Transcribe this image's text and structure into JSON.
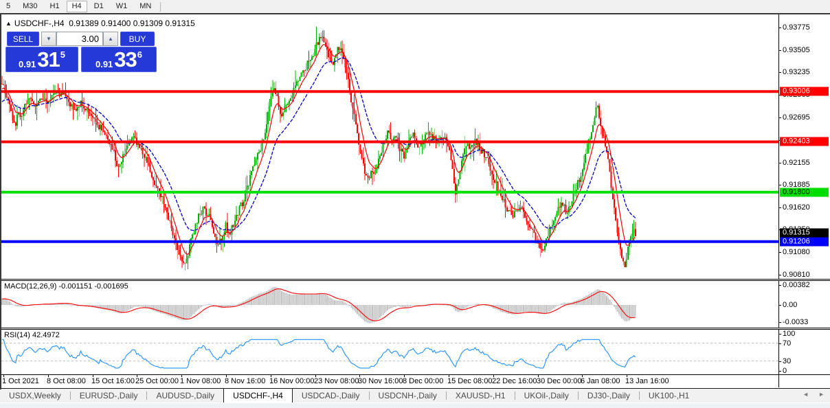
{
  "toolbar": {
    "timeframes": [
      {
        "label": "5",
        "active": false
      },
      {
        "label": "M30",
        "active": false
      },
      {
        "label": "H1",
        "active": false
      },
      {
        "label": "H4",
        "active": true
      },
      {
        "label": "D1",
        "active": false
      },
      {
        "label": "W1",
        "active": false
      },
      {
        "label": "MN",
        "active": false
      }
    ]
  },
  "chart": {
    "title": {
      "symbol": "USDCHF-,H4",
      "ohlc": "0.91389 0.91400 0.91309 0.91315"
    },
    "trade_panel": {
      "sell_label": "SELL",
      "buy_label": "BUY",
      "volume": "3.00",
      "sell_price": {
        "prefix": "0.91",
        "big": "31",
        "sup": "5"
      },
      "buy_price": {
        "prefix": "0.91",
        "big": "33",
        "sup": "6"
      }
    }
  },
  "chart_data": {
    "type": "candlestick",
    "symbol": "USDCHF-,H4",
    "timeframe": "H4",
    "ohlc_display": {
      "open": "0.91389",
      "high": "0.91400",
      "low": "0.91309",
      "close": "0.91315"
    },
    "x_labels": [
      "1 Oct 2021",
      "8 Oct 08:00",
      "15 Oct 16:00",
      "25 Oct 00:00",
      "1 Nov 08:00",
      "8 Nov 16:00",
      "16 Nov 00:00",
      "23 Nov 08:00",
      "30 Nov 16:00",
      "8 Dec 00:00",
      "15 Dec 08:00",
      "22 Dec 16:00",
      "30 Dec 00:00",
      "6 Jan 08:00",
      "13 Jan 16:00"
    ],
    "y_ticks": [
      "0.93775",
      "0.93505",
      "0.93235",
      "0.92965",
      "0.92695",
      "0.92425",
      "0.92155",
      "0.91885",
      "0.91620",
      "0.91350",
      "0.91080",
      "0.90810"
    ],
    "y_range": {
      "max": 0.9393,
      "min": 0.9076
    },
    "hlines": [
      {
        "price": 0.93006,
        "color": "#ff0000",
        "label": "0.93006",
        "label_bg": "#ff0000",
        "label_fg": "#ffffff"
      },
      {
        "price": 0.92403,
        "color": "#ff0000",
        "label": "0.92403",
        "label_bg": "#ff0000",
        "label_fg": "#ffffff"
      },
      {
        "price": 0.918,
        "color": "#00e000",
        "label": "0.91800",
        "label_bg": "#00dd00",
        "label_fg": "#000000"
      },
      {
        "price": 0.91206,
        "color": "#0000ff",
        "label": "0.91206",
        "label_bg": "#0000ff",
        "label_fg": "#ffffff"
      }
    ],
    "current_price": {
      "value": 0.91315,
      "label": "0.91315",
      "label_bg": "#000000",
      "label_fg": "#ffffff"
    },
    "price_anchors": [
      [
        3,
        0.9312
      ],
      [
        8,
        0.93
      ],
      [
        13,
        0.9285
      ],
      [
        18,
        0.927
      ],
      [
        22,
        0.9255
      ],
      [
        26,
        0.9278
      ],
      [
        30,
        0.9268
      ],
      [
        36,
        0.9282
      ],
      [
        44,
        0.929
      ],
      [
        52,
        0.9282
      ],
      [
        60,
        0.9294
      ],
      [
        68,
        0.9288
      ],
      [
        76,
        0.9294
      ],
      [
        84,
        0.9298
      ],
      [
        92,
        0.93
      ],
      [
        100,
        0.9288
      ],
      [
        110,
        0.928
      ],
      [
        120,
        0.9287
      ],
      [
        130,
        0.9272
      ],
      [
        140,
        0.9263
      ],
      [
        150,
        0.9254
      ],
      [
        158,
        0.924
      ],
      [
        166,
        0.9227
      ],
      [
        172,
        0.921
      ],
      [
        178,
        0.922
      ],
      [
        186,
        0.9238
      ],
      [
        194,
        0.9244
      ],
      [
        202,
        0.9234
      ],
      [
        210,
        0.9222
      ],
      [
        218,
        0.9206
      ],
      [
        226,
        0.919
      ],
      [
        234,
        0.9178
      ],
      [
        242,
        0.9158
      ],
      [
        250,
        0.9132
      ],
      [
        257,
        0.9116
      ],
      [
        263,
        0.9103
      ],
      [
        269,
        0.9094
      ],
      [
        275,
        0.911
      ],
      [
        281,
        0.913
      ],
      [
        288,
        0.915
      ],
      [
        296,
        0.916
      ],
      [
        304,
        0.915
      ],
      [
        310,
        0.9138
      ],
      [
        316,
        0.9112
      ],
      [
        322,
        0.9124
      ],
      [
        328,
        0.914
      ],
      [
        334,
        0.9131
      ],
      [
        340,
        0.9141
      ],
      [
        347,
        0.9158
      ],
      [
        354,
        0.917
      ],
      [
        360,
        0.9185
      ],
      [
        368,
        0.9208
      ],
      [
        376,
        0.9226
      ],
      [
        384,
        0.9245
      ],
      [
        391,
        0.9276
      ],
      [
        397,
        0.9306
      ],
      [
        403,
        0.9296
      ],
      [
        409,
        0.9272
      ],
      [
        415,
        0.9282
      ],
      [
        423,
        0.9295
      ],
      [
        431,
        0.9308
      ],
      [
        439,
        0.932
      ],
      [
        447,
        0.9333
      ],
      [
        455,
        0.9345
      ],
      [
        461,
        0.9357
      ],
      [
        467,
        0.9368
      ],
      [
        473,
        0.9355
      ],
      [
        479,
        0.934
      ],
      [
        484,
        0.9331
      ],
      [
        489,
        0.9345
      ],
      [
        493,
        0.9355
      ],
      [
        498,
        0.9347
      ],
      [
        504,
        0.9328
      ],
      [
        510,
        0.9296
      ],
      [
        516,
        0.9268
      ],
      [
        522,
        0.924
      ],
      [
        528,
        0.9215
      ],
      [
        534,
        0.9196
      ],
      [
        540,
        0.9203
      ],
      [
        546,
        0.9208
      ],
      [
        552,
        0.9218
      ],
      [
        558,
        0.9238
      ],
      [
        564,
        0.9252
      ],
      [
        570,
        0.924
      ],
      [
        576,
        0.9247
      ],
      [
        582,
        0.9231
      ],
      [
        588,
        0.9221
      ],
      [
        594,
        0.9241
      ],
      [
        600,
        0.925
      ],
      [
        606,
        0.9238
      ],
      [
        612,
        0.9233
      ],
      [
        618,
        0.9247
      ],
      [
        624,
        0.9255
      ],
      [
        630,
        0.9246
      ],
      [
        636,
        0.924
      ],
      [
        642,
        0.925
      ],
      [
        648,
        0.9242
      ],
      [
        654,
        0.923
      ],
      [
        658,
        0.921
      ],
      [
        663,
        0.918
      ],
      [
        668,
        0.9198
      ],
      [
        674,
        0.9224
      ],
      [
        680,
        0.9238
      ],
      [
        686,
        0.923
      ],
      [
        692,
        0.9244
      ],
      [
        698,
        0.9234
      ],
      [
        704,
        0.9226
      ],
      [
        710,
        0.9215
      ],
      [
        716,
        0.9203
      ],
      [
        722,
        0.919
      ],
      [
        728,
        0.9178
      ],
      [
        734,
        0.9169
      ],
      [
        740,
        0.9156
      ],
      [
        746,
        0.915
      ],
      [
        752,
        0.916
      ],
      [
        758,
        0.9166
      ],
      [
        764,
        0.9152
      ],
      [
        770,
        0.914
      ],
      [
        776,
        0.913
      ],
      [
        782,
        0.9118
      ],
      [
        788,
        0.9108
      ],
      [
        794,
        0.912
      ],
      [
        800,
        0.9135
      ],
      [
        806,
        0.915
      ],
      [
        812,
        0.916
      ],
      [
        818,
        0.9168
      ],
      [
        824,
        0.9156
      ],
      [
        830,
        0.9164
      ],
      [
        836,
        0.9178
      ],
      [
        842,
        0.9192
      ],
      [
        848,
        0.9208
      ],
      [
        854,
        0.923
      ],
      [
        860,
        0.9252
      ],
      [
        865,
        0.927
      ],
      [
        869,
        0.9282
      ],
      [
        873,
        0.9268
      ],
      [
        877,
        0.925
      ],
      [
        881,
        0.9238
      ],
      [
        885,
        0.9218
      ],
      [
        889,
        0.9192
      ],
      [
        893,
        0.9164
      ],
      [
        897,
        0.9142
      ],
      [
        901,
        0.912
      ],
      [
        905,
        0.91
      ],
      [
        909,
        0.9088
      ],
      [
        913,
        0.9108
      ],
      [
        917,
        0.9126
      ],
      [
        921,
        0.9133
      ],
      [
        925,
        0.9131
      ]
    ],
    "bars_end_x": 925,
    "candle_step": 2.2,
    "colors": {
      "up": "#00b000",
      "down": "#ff0000",
      "ma_fast": "#ff0000",
      "ma_slow": "#0000c8",
      "macd_hist": "#c3c3c3",
      "macd_signal": "#ff0000",
      "rsi": "#1e90ff",
      "levels": "#c0c0c0"
    },
    "macd": {
      "label": "MACD(12,26,9) -0.001151 -0.001695",
      "ticks": [
        "0.00382",
        "0.00",
        "-0.0033"
      ],
      "tick_values": [
        0.00382,
        0,
        -0.0033
      ]
    },
    "rsi": {
      "label": "RSI(14) 42.4972",
      "value": 42.4972,
      "ticks": [
        "100",
        "70",
        "30",
        "0"
      ],
      "tick_values": [
        100,
        70,
        30,
        0
      ],
      "levels": [
        70,
        30
      ]
    }
  },
  "tabs": {
    "items": [
      {
        "label": "USDX,Weekly",
        "active": false
      },
      {
        "label": "EURUSD-,Daily",
        "active": false
      },
      {
        "label": "AUDUSD-,Daily",
        "active": false
      },
      {
        "label": "USDCHF-,H4",
        "active": true
      },
      {
        "label": "USDCAD-,Daily",
        "active": false
      },
      {
        "label": "USDCNH-,Daily",
        "active": false
      },
      {
        "label": "XAUUSD-,H1",
        "active": false
      },
      {
        "label": "UKOil-,Daily",
        "active": false
      },
      {
        "label": "DJ30-,Daily",
        "active": false
      },
      {
        "label": "UK100-,H1",
        "active": false
      }
    ],
    "scroll_left": "◄",
    "scroll_right": "►"
  }
}
